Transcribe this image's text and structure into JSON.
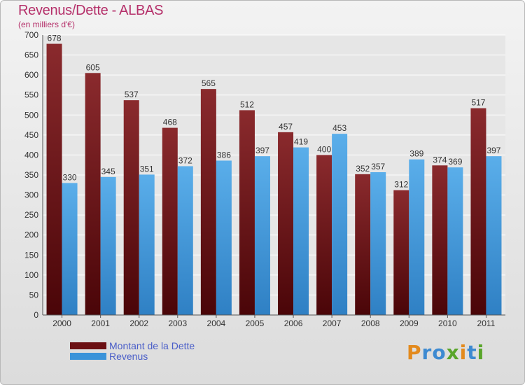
{
  "chart_data": {
    "type": "bar",
    "title": "Revenus/Dette - ALBAS",
    "subtitle": "(en milliers d'€)",
    "categories": [
      "2000",
      "2001",
      "2002",
      "2003",
      "2004",
      "2005",
      "2006",
      "2007",
      "2008",
      "2009",
      "2010",
      "2011"
    ],
    "series": [
      {
        "name": "Montant de la Dette",
        "values": [
          678,
          605,
          537,
          468,
          565,
          512,
          457,
          400,
          352,
          312,
          374,
          517
        ],
        "color": "#6b0f12"
      },
      {
        "name": "Revenus",
        "values": [
          330,
          345,
          351,
          372,
          386,
          397,
          419,
          453,
          357,
          389,
          369,
          397
        ],
        "color": "#3a93d9"
      }
    ],
    "ylim": [
      0,
      700
    ],
    "yticks": [
      0,
      50,
      100,
      150,
      200,
      250,
      300,
      350,
      400,
      450,
      500,
      550,
      600,
      650,
      700
    ],
    "grid": true,
    "legend_position": "bottom-left"
  },
  "logo": {
    "text": "Proxiti"
  }
}
